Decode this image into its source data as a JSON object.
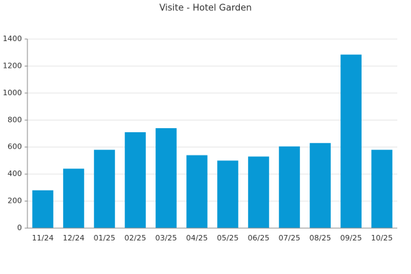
{
  "chart_data": {
    "type": "bar",
    "title": "Visite - Hotel Garden",
    "categories": [
      "11/24",
      "12/24",
      "01/25",
      "02/25",
      "03/25",
      "04/25",
      "05/25",
      "06/25",
      "07/25",
      "08/25",
      "09/25",
      "10/25"
    ],
    "values": [
      280,
      440,
      580,
      710,
      740,
      540,
      500,
      530,
      605,
      630,
      1285,
      580
    ],
    "color": "#0899d6",
    "ylim": [
      0,
      1400
    ],
    "yticks": [
      0,
      200,
      400,
      600,
      800,
      1000,
      1200,
      1400
    ],
    "grid": true
  }
}
